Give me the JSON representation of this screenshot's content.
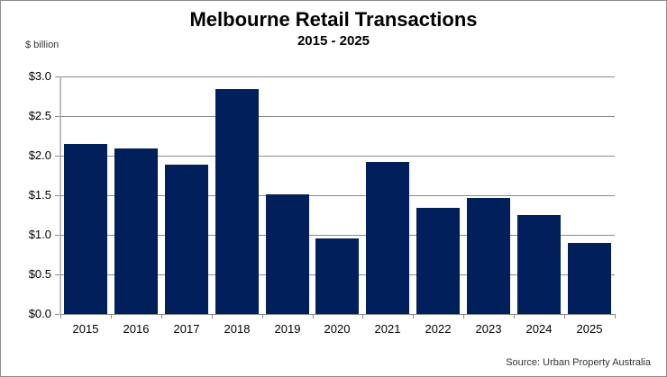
{
  "chart_data": {
    "type": "bar",
    "title": "Melbourne Retail Transactions",
    "subtitle": "2015 - 2025",
    "xlabel": "",
    "ylabel": "$ billion",
    "categories": [
      "2015",
      "2016",
      "2017",
      "2018",
      "2019",
      "2020",
      "2021",
      "2022",
      "2023",
      "2024",
      "2025"
    ],
    "values": [
      2.15,
      2.09,
      1.89,
      2.84,
      1.51,
      0.95,
      1.92,
      1.34,
      1.47,
      1.25,
      0.9
    ],
    "ylim": [
      0,
      3.0
    ],
    "yticks": [
      "$0.0",
      "$0.5",
      "$1.0",
      "$1.5",
      "$2.0",
      "$2.5",
      "$3.0"
    ],
    "grid": true,
    "legend": null,
    "bar_color": "#001f5b",
    "source": "Source: Urban Property Australia"
  }
}
